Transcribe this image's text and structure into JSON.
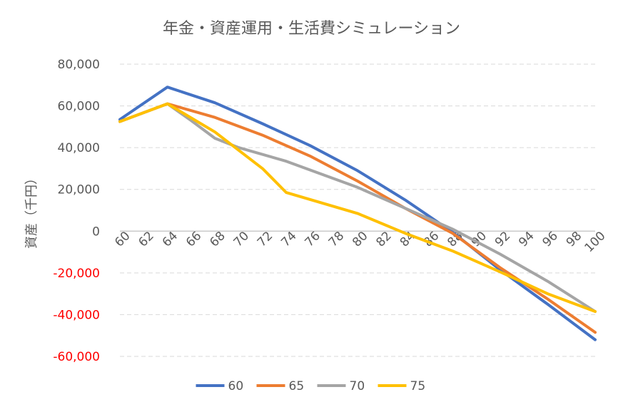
{
  "chart_data": {
    "type": "line",
    "title": "年金・資産運用・生活費シミュレーション",
    "ylabel": "資産（千円）",
    "xlabel": "",
    "ylim": [
      -60000,
      80000
    ],
    "yticks": [
      80000,
      60000,
      40000,
      20000,
      0,
      -20000,
      -40000,
      -60000
    ],
    "ytick_labels": [
      "80,000",
      "60,000",
      "40,000",
      "20,000",
      "0",
      "-20,000",
      "-40,000",
      "-60,000"
    ],
    "negative_tick_color": "#FF0000",
    "x": [
      60,
      64,
      68,
      72,
      76,
      80,
      84,
      88,
      92,
      96,
      100
    ],
    "xtick_labels": [
      "60",
      "62",
      "64",
      "66",
      "68",
      "70",
      "72",
      "74",
      "76",
      "78",
      "80",
      "82",
      "84",
      "86",
      "88",
      "90",
      "92",
      "94",
      "96",
      "98",
      "100"
    ],
    "xlim": [
      60,
      100
    ],
    "grid": true,
    "legend_position": "bottom",
    "series": [
      {
        "name": "60",
        "color": "#4472C4",
        "x": [
          60,
          64,
          68,
          72,
          76,
          80,
          84,
          88,
          92,
          96,
          100
        ],
        "values": [
          53500,
          69000,
          61500,
          51500,
          41000,
          29000,
          15000,
          -500,
          -18500,
          -35000,
          -52000
        ]
      },
      {
        "name": "65",
        "color": "#ED7D31",
        "x": [
          60,
          64,
          68,
          72,
          76,
          80,
          84,
          88,
          92,
          96,
          100
        ],
        "values": [
          52500,
          61000,
          54500,
          46000,
          36000,
          24000,
          11000,
          -1000,
          -17500,
          -32500,
          -48500
        ]
      },
      {
        "name": "70",
        "color": "#A5A5A5",
        "x": [
          60,
          64,
          66,
          68,
          70,
          74,
          80,
          84,
          88,
          92,
          96,
          100
        ],
        "values": [
          52500,
          61000,
          53000,
          44500,
          40000,
          33500,
          21000,
          11000,
          1000,
          -11000,
          -24000,
          -38500
        ]
      },
      {
        "name": "75",
        "color": "#FFC000",
        "x": [
          60,
          64,
          68,
          72,
          74,
          80,
          84,
          88,
          92,
          96,
          100
        ],
        "values": [
          52500,
          61000,
          47500,
          30000,
          18500,
          8500,
          -1000,
          -9500,
          -19500,
          -30000,
          -38500
        ]
      }
    ]
  }
}
